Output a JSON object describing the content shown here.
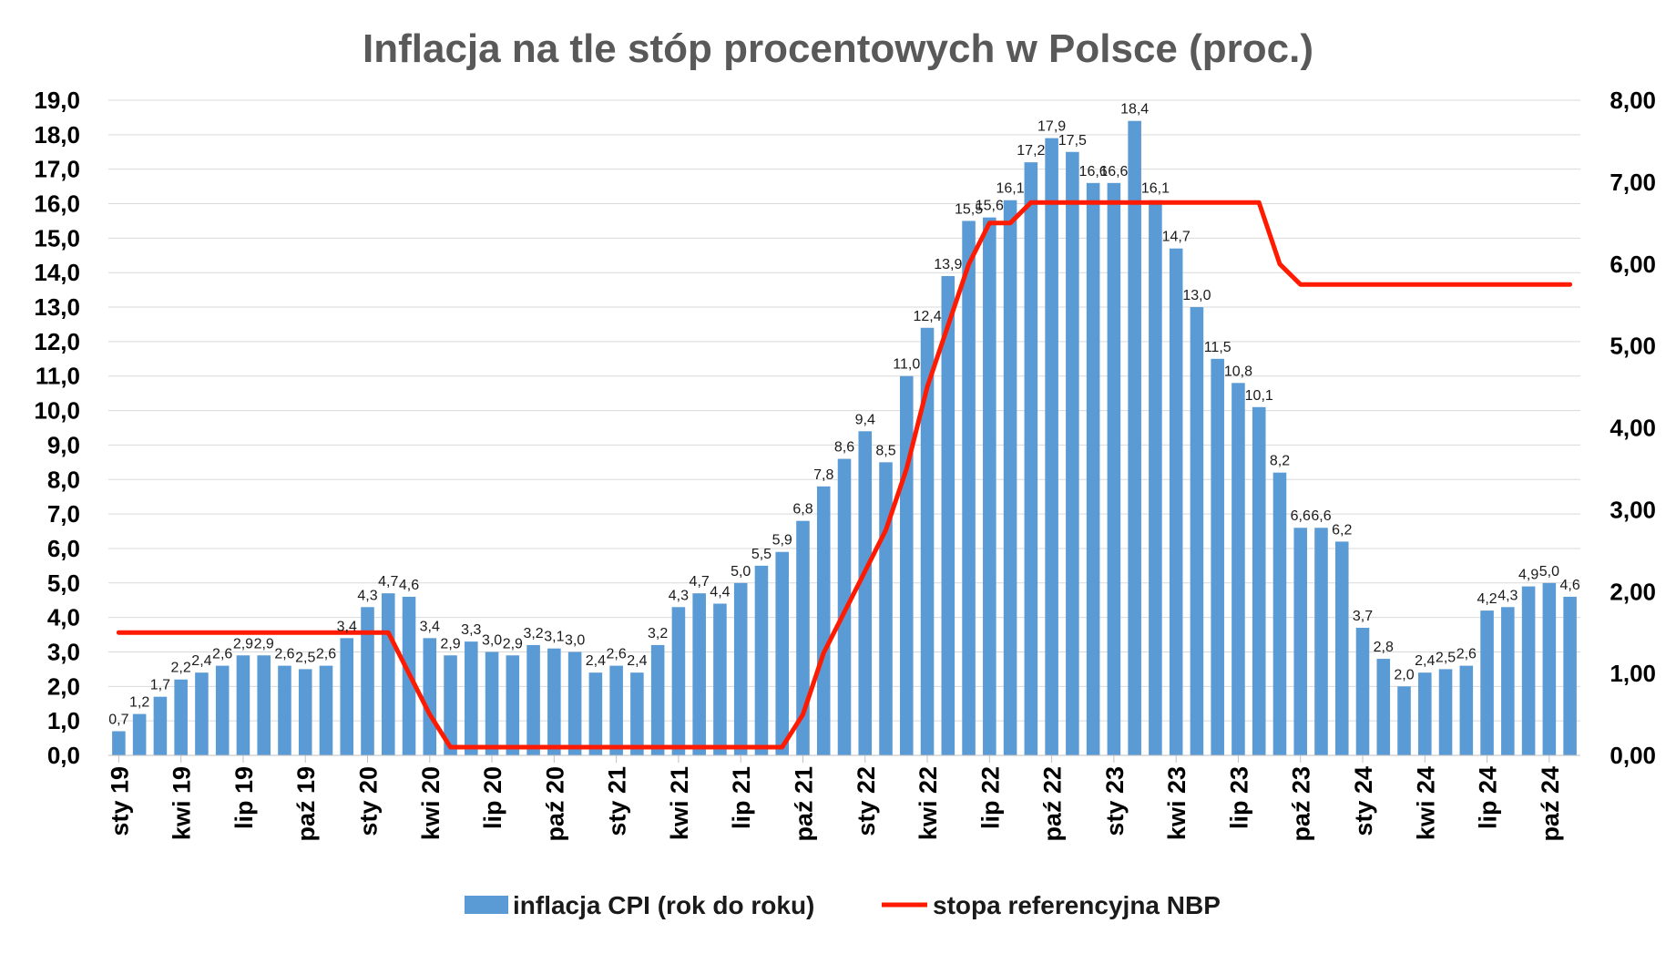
{
  "chart_data": {
    "type": "bar",
    "title": "Inflacja na tle stóp procentowych w Polsce (proc.)",
    "colors": {
      "cpi": "#5B9BD5",
      "rate": "#FF1A00"
    },
    "months": [
      "sty 19",
      "lut 19",
      "mar 19",
      "kwi 19",
      "maj 19",
      "cze 19",
      "lip 19",
      "sie 19",
      "wrz 19",
      "paź 19",
      "lis 19",
      "gru 19",
      "sty 20",
      "lut 20",
      "mar 20",
      "kwi 20",
      "maj 20",
      "cze 20",
      "lip 20",
      "sie 20",
      "wrz 20",
      "paź 20",
      "lis 20",
      "gru 20",
      "sty 21",
      "lut 21",
      "mar 21",
      "kwi 21",
      "maj 21",
      "cze 21",
      "lip 21",
      "sie 21",
      "wrz 21",
      "paź 21",
      "lis 21",
      "gru 21",
      "sty 22",
      "lut 22",
      "mar 22",
      "kwi 22",
      "maj 22",
      "cze 22",
      "lip 22",
      "sie 22",
      "wrz 22",
      "paź 22",
      "lis 22",
      "gru 22",
      "sty 23",
      "lut 23",
      "mar 23",
      "kwi 23",
      "maj 23",
      "cze 23",
      "lip 23",
      "sie 23",
      "wrz 23",
      "paź 23",
      "lis 23",
      "gru 23",
      "sty 24",
      "lut 24",
      "mar 24",
      "kwi 24",
      "maj 24",
      "cze 24",
      "lip 24",
      "sie 24",
      "wrz 24",
      "paź 24",
      "lis 24"
    ],
    "x_tick_labels": [
      "sty 19",
      "kwi 19",
      "lip 19",
      "paź 19",
      "sty 20",
      "kwi 20",
      "lip 20",
      "paź 20",
      "sty 21",
      "kwi 21",
      "lip 21",
      "paź 21",
      "sty 22",
      "kwi 22",
      "lip 22",
      "paź 22",
      "sty 23",
      "kwi 23",
      "lip 23",
      "paź 23",
      "sty 24",
      "kwi 24",
      "lip 24",
      "paź 24"
    ],
    "series": [
      {
        "name": "inflacja CPI (rok do roku)",
        "axis": "left",
        "type": "bar",
        "values": [
          0.7,
          1.2,
          1.7,
          2.2,
          2.4,
          2.6,
          2.9,
          2.9,
          2.6,
          2.5,
          2.6,
          3.4,
          4.3,
          4.7,
          4.6,
          3.4,
          2.9,
          3.3,
          3.0,
          2.9,
          3.2,
          3.1,
          3.0,
          2.4,
          2.6,
          2.4,
          3.2,
          4.3,
          4.7,
          4.4,
          5.0,
          5.5,
          5.9,
          6.8,
          7.8,
          8.6,
          9.4,
          8.5,
          11.0,
          12.4,
          13.9,
          15.5,
          15.6,
          16.1,
          17.2,
          17.9,
          17.5,
          16.6,
          16.6,
          18.4,
          16.1,
          14.7,
          13.0,
          11.5,
          10.8,
          10.1,
          8.2,
          6.6,
          6.6,
          6.2,
          3.7,
          2.8,
          2.0,
          2.4,
          2.5,
          2.6,
          4.2,
          4.3,
          4.9,
          5.0,
          4.6
        ]
      },
      {
        "name": "stopa referencyjna NBP",
        "axis": "right",
        "type": "line",
        "values": [
          1.5,
          1.5,
          1.5,
          1.5,
          1.5,
          1.5,
          1.5,
          1.5,
          1.5,
          1.5,
          1.5,
          1.5,
          1.5,
          1.5,
          1.0,
          0.5,
          0.1,
          0.1,
          0.1,
          0.1,
          0.1,
          0.1,
          0.1,
          0.1,
          0.1,
          0.1,
          0.1,
          0.1,
          0.1,
          0.1,
          0.1,
          0.1,
          0.1,
          0.5,
          1.25,
          1.75,
          2.25,
          2.75,
          3.5,
          4.5,
          5.25,
          6.0,
          6.5,
          6.5,
          6.75,
          6.75,
          6.75,
          6.75,
          6.75,
          6.75,
          6.75,
          6.75,
          6.75,
          6.75,
          6.75,
          6.75,
          6.0,
          5.75,
          5.75,
          5.75,
          5.75,
          5.75,
          5.75,
          5.75,
          5.75,
          5.75,
          5.75,
          5.75,
          5.75,
          5.75,
          5.75
        ]
      }
    ],
    "y_left": {
      "min": 0,
      "max": 19,
      "step": 1,
      "tick_labels": [
        "0,0",
        "1,0",
        "2,0",
        "3,0",
        "4,0",
        "5,0",
        "6,0",
        "7,0",
        "8,0",
        "9,0",
        "10,0",
        "11,0",
        "12,0",
        "13,0",
        "14,0",
        "15,0",
        "16,0",
        "17,0",
        "18,0",
        "19,0"
      ]
    },
    "y_right": {
      "min": 0,
      "max": 8,
      "step": 1,
      "tick_labels": [
        "0,00",
        "1,00",
        "2,00",
        "3,00",
        "4,00",
        "5,00",
        "6,00",
        "7,00",
        "8,00"
      ]
    },
    "grid": true,
    "legend_position": "bottom"
  }
}
